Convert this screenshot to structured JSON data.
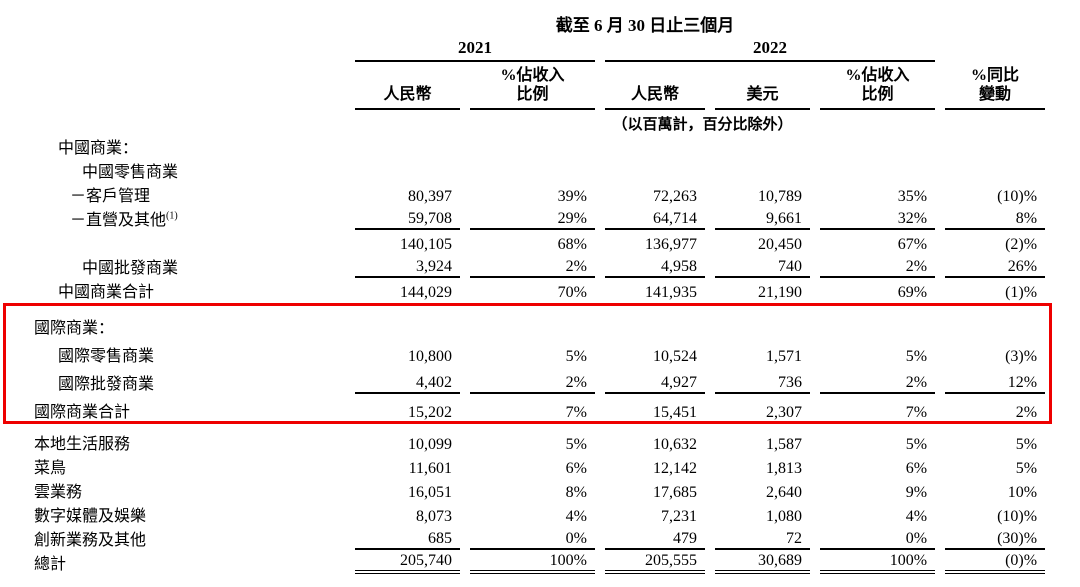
{
  "header": {
    "period_title": "截至 6 月 30 日止三個月",
    "year_2021": "2021",
    "year_2022": "2022",
    "columns": {
      "rmb_2021": "人民幣",
      "pct_2021": "%佔收入\n比例",
      "rmb_2022": "人民幣",
      "usd_2022": "美元",
      "pct_2022": "%佔收入\n比例",
      "yoy": "%同比\n變動"
    },
    "unit_note": "（以百萬計，百分比除外）"
  },
  "table": {
    "rows": [
      {
        "label": "中國商業："
      },
      {
        "label": "中國零售商業"
      },
      {
        "label": "－客戶管理",
        "values": [
          "80,397",
          "39%",
          "72,263",
          "10,789",
          "35%",
          "(10)%"
        ]
      },
      {
        "label": "－直營及其他",
        "sup": "(1)",
        "values": [
          "59,708",
          "29%",
          "64,714",
          "9,661",
          "32%",
          "8%"
        ]
      },
      {
        "label": "",
        "values": [
          "140,105",
          "68%",
          "136,977",
          "20,450",
          "67%",
          "(2)%"
        ]
      },
      {
        "label": "中國批發商業",
        "values": [
          "3,924",
          "2%",
          "4,958",
          "740",
          "2%",
          "26%"
        ]
      },
      {
        "label": "中國商業合計",
        "values": [
          "144,029",
          "70%",
          "141,935",
          "21,190",
          "69%",
          "(1)%"
        ]
      },
      {
        "label": "國際商業："
      },
      {
        "label": "國際零售商業",
        "values": [
          "10,800",
          "5%",
          "10,524",
          "1,571",
          "5%",
          "(3)%"
        ]
      },
      {
        "label": "國際批發商業",
        "values": [
          "4,402",
          "2%",
          "4,927",
          "736",
          "2%",
          "12%"
        ]
      },
      {
        "label": "國際商業合計",
        "values": [
          "15,202",
          "7%",
          "15,451",
          "2,307",
          "7%",
          "2%"
        ]
      },
      {
        "label": "本地生活服務",
        "values": [
          "10,099",
          "5%",
          "10,632",
          "1,587",
          "5%",
          "5%"
        ]
      },
      {
        "label": "菜鳥",
        "values": [
          "11,601",
          "6%",
          "12,142",
          "1,813",
          "6%",
          "5%"
        ]
      },
      {
        "label": "雲業務",
        "values": [
          "16,051",
          "8%",
          "17,685",
          "2,640",
          "9%",
          "10%"
        ]
      },
      {
        "label": "數字媒體及娛樂",
        "values": [
          "8,073",
          "4%",
          "7,231",
          "1,080",
          "4%",
          "(10)%"
        ]
      },
      {
        "label": "創新業務及其他",
        "values": [
          "685",
          "0%",
          "479",
          "72",
          "0%",
          "(30)%"
        ]
      },
      {
        "label": "總計",
        "values": [
          "205,740",
          "100%",
          "205,555",
          "30,689",
          "100%",
          "(0)%"
        ]
      }
    ]
  },
  "annotation": {
    "color": "#ee0000"
  }
}
